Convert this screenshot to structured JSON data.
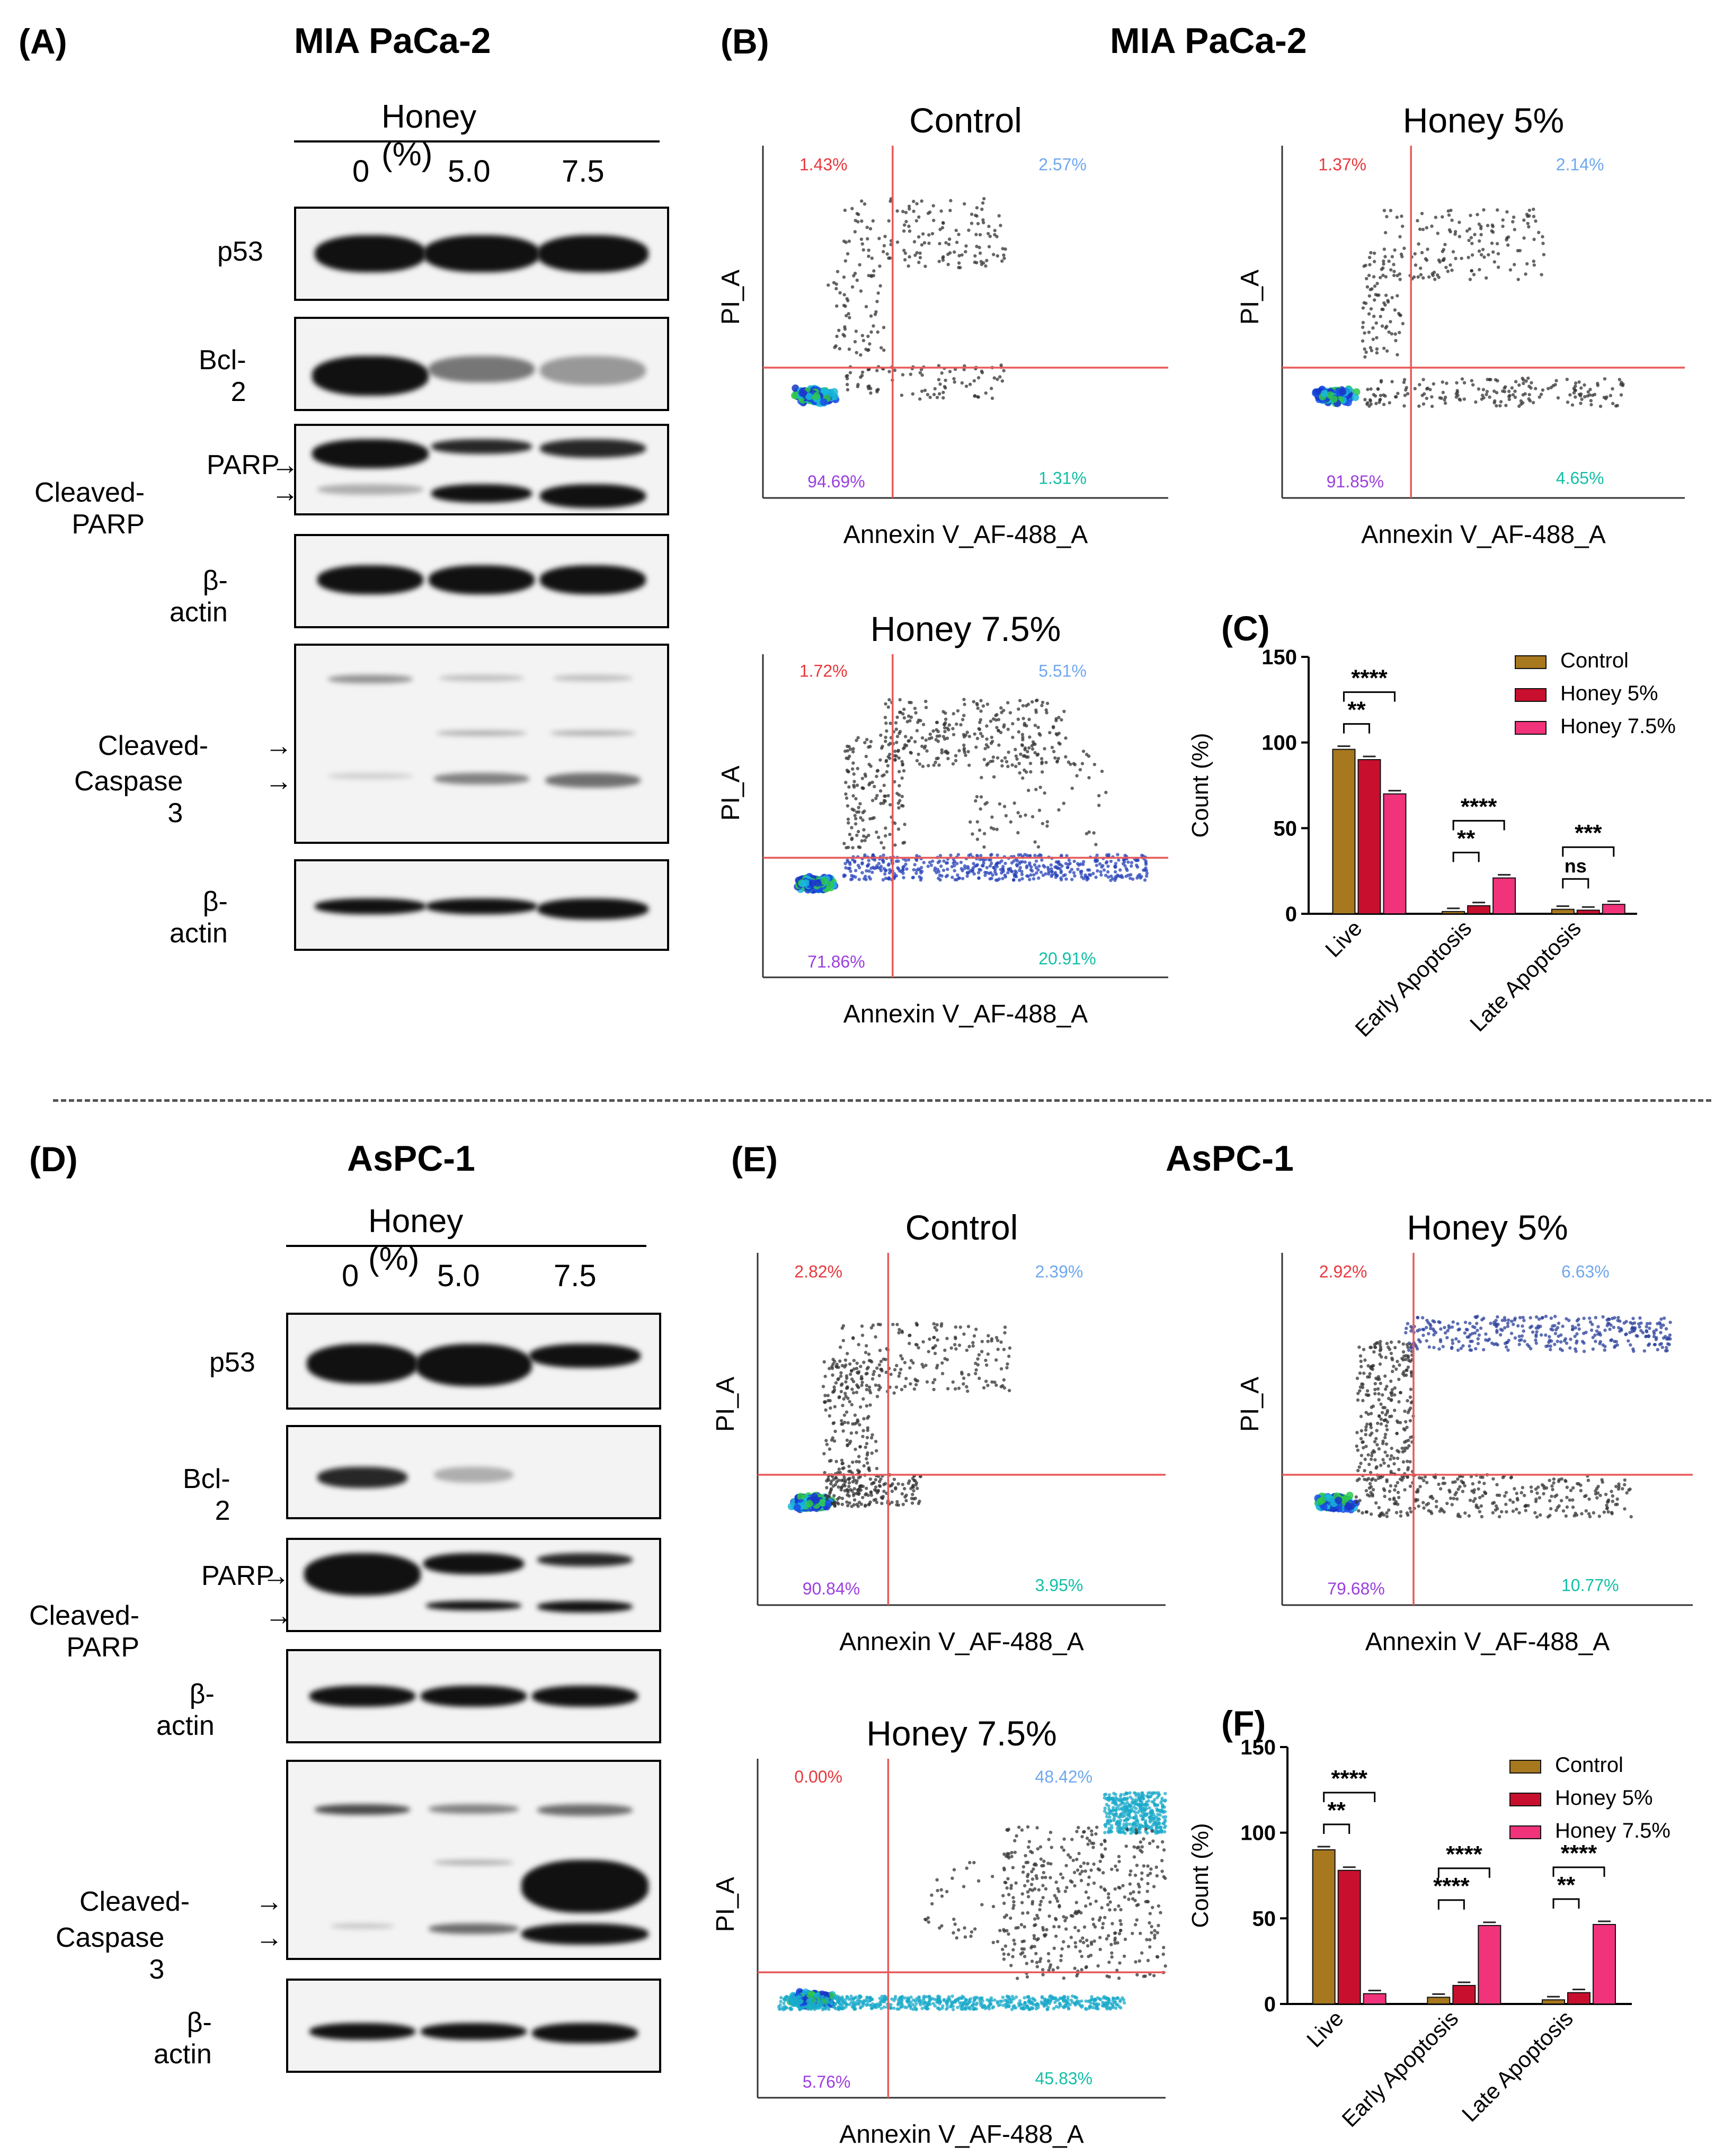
{
  "panels": {
    "A": {
      "label": "(A)",
      "cell": "MIA PaCa-2"
    },
    "B": {
      "label": "(B)",
      "cell": "MIA PaCa-2"
    },
    "C": {
      "label": "(C)"
    },
    "D": {
      "label": "(D)",
      "cell": "AsPC-1"
    },
    "E": {
      "label": "(E)",
      "cell": "AsPC-1"
    },
    "F": {
      "label": "(F)"
    }
  },
  "western": {
    "header": "Honey (%)",
    "lanes": [
      "0",
      "5.0",
      "7.5"
    ],
    "rows": {
      "p53": "p53",
      "bcl2": "Bcl-2",
      "parp": "PARP",
      "cleaved_parp": "Cleaved-PARP",
      "actin": "β-actin",
      "casp_line1": "Cleaved-",
      "casp_line2": "Caspase 3"
    },
    "arrow": "→"
  },
  "flow": {
    "xlabel": "Annexin V_AF-488_A",
    "ylabel": "PI_A",
    "mia": [
      {
        "title": "Control",
        "ul": "1.43%",
        "ur": "2.57%",
        "ll": "94.69%",
        "lr": "1.31%"
      },
      {
        "title": "Honey 5%",
        "ul": "1.37%",
        "ur": "2.14%",
        "ll": "91.85%",
        "lr": "4.65%"
      },
      {
        "title": "Honey 7.5%",
        "ul": "1.72%",
        "ur": "5.51%",
        "ll": "71.86%",
        "lr": "20.91%"
      }
    ],
    "aspc": [
      {
        "title": "Control",
        "ul": "2.82%",
        "ur": "2.39%",
        "ll": "90.84%",
        "lr": "3.95%"
      },
      {
        "title": "Honey 5%",
        "ul": "2.92%",
        "ur": "6.63%",
        "ll": "79.68%",
        "lr": "10.77%"
      },
      {
        "title": "Honey 7.5%",
        "ul": "0.00%",
        "ur": "48.42%",
        "ll": "5.76%",
        "lr": "45.83%"
      }
    ],
    "colors": {
      "ul": "#e8383c",
      "ur": "#6fa8ee",
      "ll": "#9b3fe0",
      "lr": "#12bfa6",
      "gate": "#e85a5a"
    }
  },
  "chart_data": [
    {
      "type": "bar",
      "panel": "C",
      "categories": [
        "Live",
        "Early Apoptosis",
        "Late Apoptosis"
      ],
      "ylabel": "Count (%)",
      "ylim": [
        0,
        150
      ],
      "yticks": [
        "0",
        "50",
        "100",
        "150"
      ],
      "series": [
        {
          "name": "Control",
          "color": "#a8781e",
          "values": [
            96,
            1.3,
            2.6
          ]
        },
        {
          "name": "Honey 5%",
          "color": "#c8102e",
          "values": [
            90,
            4.7,
            2.1
          ]
        },
        {
          "name": "Honey 7.5%",
          "color": "#f0337a",
          "values": [
            70,
            20.9,
            5.5
          ]
        }
      ],
      "significance": [
        {
          "group": 0,
          "from": 0,
          "to": 1,
          "label": "**"
        },
        {
          "group": 0,
          "from": 0,
          "to": 2,
          "label": "****"
        },
        {
          "group": 1,
          "from": 0,
          "to": 1,
          "label": "**"
        },
        {
          "group": 1,
          "from": 0,
          "to": 2,
          "label": "****"
        },
        {
          "group": 2,
          "from": 0,
          "to": 1,
          "label": "ns"
        },
        {
          "group": 2,
          "from": 0,
          "to": 2,
          "label": "***"
        }
      ],
      "legend_position": "top-right"
    },
    {
      "type": "bar",
      "panel": "F",
      "categories": [
        "Live",
        "Early Apoptosis",
        "Late Apoptosis"
      ],
      "ylabel": "Count (%)",
      "ylim": [
        0,
        150
      ],
      "yticks": [
        "0",
        "50",
        "100",
        "150"
      ],
      "series": [
        {
          "name": "Control",
          "color": "#a8781e",
          "values": [
            90,
            3.9,
            2.4
          ]
        },
        {
          "name": "Honey 5%",
          "color": "#c8102e",
          "values": [
            78,
            10.8,
            6.6
          ]
        },
        {
          "name": "Honey 7.5%",
          "color": "#f0337a",
          "values": [
            6,
            45.8,
            46.4
          ]
        }
      ],
      "significance": [
        {
          "group": 0,
          "from": 0,
          "to": 1,
          "label": "**"
        },
        {
          "group": 0,
          "from": 0,
          "to": 2,
          "label": "****"
        },
        {
          "group": 1,
          "from": 0,
          "to": 1,
          "label": "****"
        },
        {
          "group": 1,
          "from": 0,
          "to": 2,
          "label": "****"
        },
        {
          "group": 2,
          "from": 0,
          "to": 1,
          "label": "**"
        },
        {
          "group": 2,
          "from": 0,
          "to": 2,
          "label": "****"
        }
      ],
      "legend_position": "top-right"
    }
  ]
}
